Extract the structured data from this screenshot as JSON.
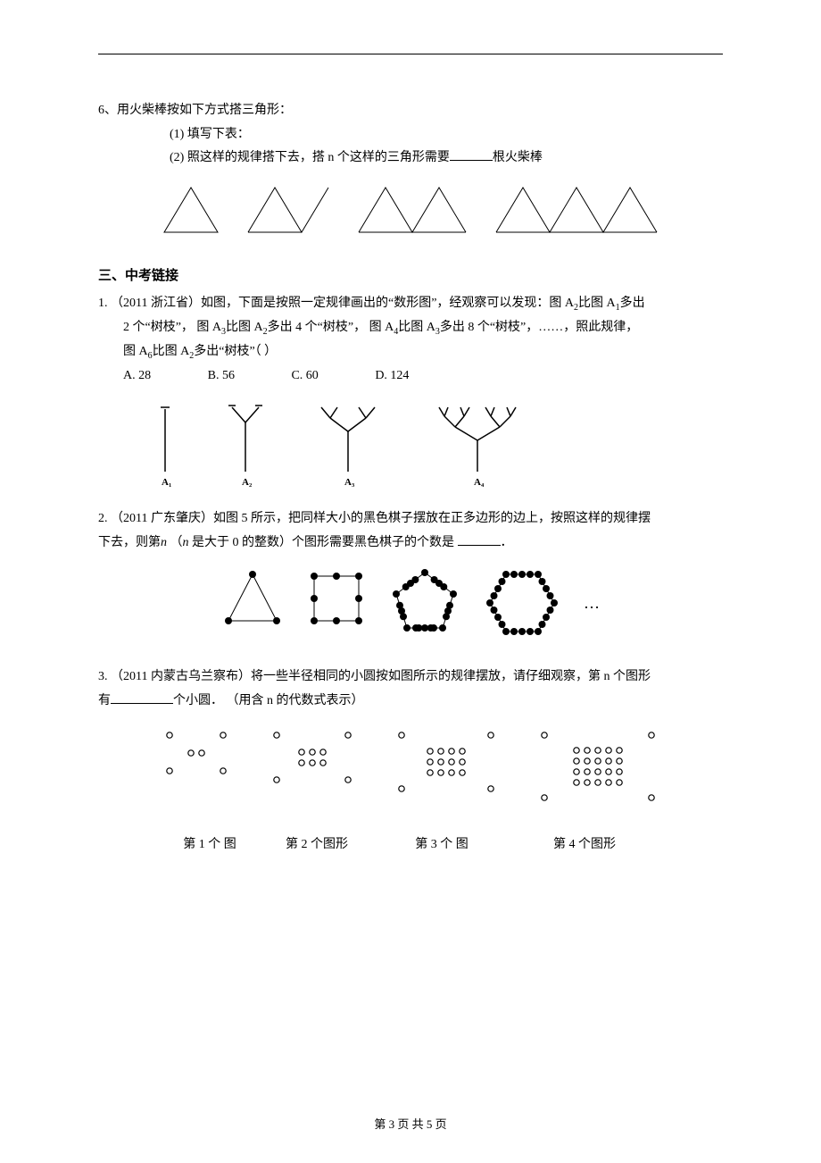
{
  "q6": {
    "stem": "6、用火柴棒按如下方式搭三角形：",
    "sub1": "(1) 填写下表：",
    "sub2_a": "(2) 照这样的规律搭下去，搭 n 个这样的三角形需要",
    "sub2_b": "根火柴棒"
  },
  "section3": "三、中考链接",
  "q1": {
    "num": "1.",
    "source": "（2011 浙江省）如图，下面是按照一定规律画出的“数形图”，经观察可以发现：图 A",
    "line1b": "比图 A",
    "line1c": "多出",
    "line2a": "2 个“树枝”， 图 A",
    "line2b": "比图 A",
    "line2c": "多出 4 个“树枝”， 图 A",
    "line2d": "比图 A",
    "line2e": "多出 8 个“树枝”，……，照此规律，",
    "line3a": "图 A",
    "line3b": "比图 A",
    "line3c": "多出“树枝”（   ）",
    "choiceA": "A. 28",
    "choiceB": "B. 56",
    "choiceC": "C. 60",
    "choiceD": "D.  124",
    "labelA1": "A₁",
    "labelA2": "A₂",
    "labelA3": "A₃",
    "labelA4": "A₄"
  },
  "q2": {
    "num": "2.",
    "line1": "（2011 广东肇庆）如图 5 所示，把同样大小的黑色棋子摆放在正多边形的边上，按照这样的规律摆",
    "line2a": "下去，则第",
    "line2b": "（",
    "line2c": "是大于 0 的整数）个图形需要黑色棋子的个数是 ",
    "line2d": "．",
    "n": "n",
    "dots": "…"
  },
  "q3": {
    "num": "3.",
    "line1": "（2011 内蒙古乌兰察布）将一些半径相同的小圆按如图所示的规律摆放，请仔细观察，第 n 个图形",
    "line2a": "有",
    "line2b": "个小圆．  （用含  n  的代数式表示）",
    "cap1": "第 1 个 图",
    "cap2": "第 2 个图形",
    "cap3": "第 3 个 图",
    "cap4": "第 4 个图形"
  },
  "footer": "第 3 页 共 5 页",
  "style": {
    "stroke": "#000000",
    "fill": "#000000",
    "bg": "#ffffff"
  }
}
